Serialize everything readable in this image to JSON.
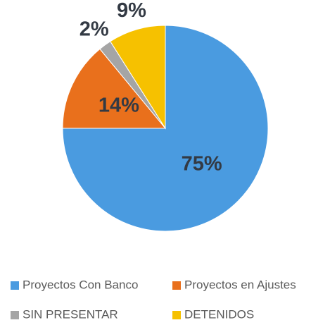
{
  "chart_data": {
    "type": "pie",
    "categories": [
      "Proyectos Con Banco",
      "Proyectos en Ajustes",
      "SIN PRESENTAR",
      "DETENIDOS"
    ],
    "values": [
      75,
      14,
      2,
      9
    ],
    "value_labels": [
      "75%",
      "14%",
      "2%",
      "9%"
    ],
    "colors": [
      "#4a9be0",
      "#e9701c",
      "#a5a5a5",
      "#f6c100"
    ],
    "legend": "bottom"
  }
}
